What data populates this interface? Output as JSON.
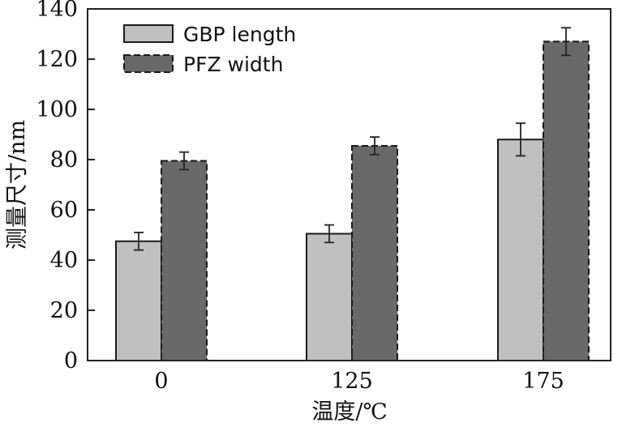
{
  "chart_data": {
    "type": "bar",
    "title": "",
    "xlabel": "温度/℃",
    "ylabel": "测量尺寸/nm",
    "categories": [
      "0",
      "125",
      "175"
    ],
    "ylim": [
      0,
      140
    ],
    "yticks": [
      0,
      20,
      40,
      60,
      80,
      100,
      120,
      140
    ],
    "grid": false,
    "legend_position": "top-left",
    "series": [
      {
        "name": "GBP length",
        "values": [
          47.5,
          50.5,
          88
        ],
        "errors": [
          3.5,
          3.5,
          6.5
        ],
        "fill": "#c0c0c0",
        "border_style": "solid"
      },
      {
        "name": "PFZ width",
        "values": [
          79.5,
          85.5,
          127
        ],
        "errors": [
          3.5,
          3.5,
          5.5
        ],
        "fill": "#696969",
        "border_style": "dashed"
      }
    ]
  }
}
